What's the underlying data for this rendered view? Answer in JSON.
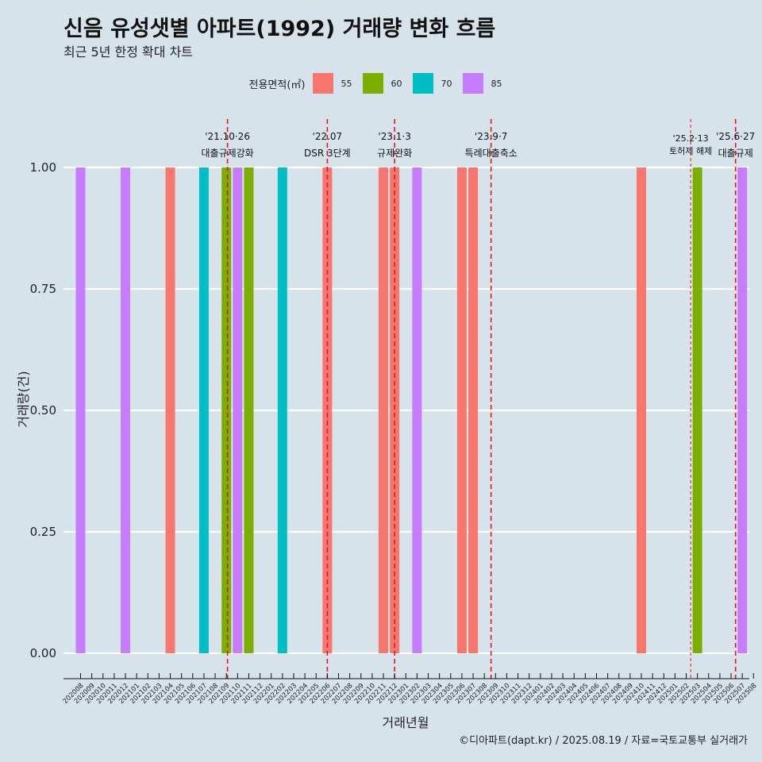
{
  "title": "신음 유성샛별 아파트(1992) 거래량 변화 흐름",
  "subtitle": "최근 5년 한정 확대 차트",
  "caption": "©디아파트(dapt.kr) / 2025.08.19 / 자료=국토교통부 실거래가",
  "legend": {
    "title": "전용면적(㎡)",
    "items": [
      {
        "label": "55",
        "color": "#f8766d"
      },
      {
        "label": "60",
        "color": "#7cae00"
      },
      {
        "label": "70",
        "color": "#00bfc4"
      },
      {
        "label": "85",
        "color": "#c77cff"
      }
    ]
  },
  "chart_data": {
    "type": "bar",
    "xlabel": "거래년월",
    "ylabel": "거래량(건)",
    "ylim": [
      0,
      1
    ],
    "yticks": [
      "0.00",
      "0.25",
      "0.50",
      "0.75",
      "1.00"
    ],
    "categories": [
      "202008",
      "202009",
      "202010",
      "202011",
      "202012",
      "202101",
      "202102",
      "202103",
      "202104",
      "202105",
      "202106",
      "202107",
      "202108",
      "202109",
      "202110",
      "202111",
      "202112",
      "202201",
      "202202",
      "202203",
      "202204",
      "202205",
      "202206",
      "202207",
      "202208",
      "202209",
      "202210",
      "202211",
      "202212",
      "202301",
      "202302",
      "202303",
      "202304",
      "202305",
      "202306",
      "202307",
      "202308",
      "202309",
      "202310",
      "202311",
      "202312",
      "202401",
      "202402",
      "202403",
      "202404",
      "202405",
      "202406",
      "202407",
      "202408",
      "202409",
      "202410",
      "202411",
      "202412",
      "202501",
      "202502",
      "202503",
      "202504",
      "202505",
      "202506",
      "202507",
      "202508"
    ],
    "bars": [
      {
        "month": "202008",
        "area": "85",
        "value": 1
      },
      {
        "month": "202012",
        "area": "85",
        "value": 1
      },
      {
        "month": "202104",
        "area": "55",
        "value": 1
      },
      {
        "month": "202107",
        "area": "70",
        "value": 1
      },
      {
        "month": "202109",
        "area": "60",
        "value": 1
      },
      {
        "month": "202110",
        "area": "85",
        "value": 1
      },
      {
        "month": "202111",
        "area": "60",
        "value": 1
      },
      {
        "month": "202202",
        "area": "70",
        "value": 1
      },
      {
        "month": "202206",
        "area": "55",
        "value": 1
      },
      {
        "month": "202211",
        "area": "55",
        "value": 1
      },
      {
        "month": "202212",
        "area": "55",
        "value": 1
      },
      {
        "month": "202302",
        "area": "85",
        "value": 1
      },
      {
        "month": "202306",
        "area": "55",
        "value": 1
      },
      {
        "month": "202307",
        "area": "55",
        "value": 1
      },
      {
        "month": "202410",
        "area": "55",
        "value": 1
      },
      {
        "month": "202503",
        "area": "60",
        "value": 1
      },
      {
        "month": "202507",
        "area": "85",
        "value": 1
      }
    ],
    "events": [
      {
        "month": "202109",
        "offset": 0.1,
        "date": "'21.10·26",
        "label": "대출규제강화",
        "style": "dashed"
      },
      {
        "month": "202206",
        "offset": 0.0,
        "date": "'22.07",
        "label": "DSR 3단계",
        "style": "dashed"
      },
      {
        "month": "202212",
        "offset": 0.0,
        "date": "'23.1·3",
        "label": "규제완화",
        "style": "dashed"
      },
      {
        "month": "202308",
        "offset": 0.6,
        "date": "'23.9·7",
        "label": "특례대출축소",
        "style": "dashed"
      },
      {
        "month": "202502",
        "offset": 0.4,
        "date": "'25.2·13",
        "label": "토허제 해제",
        "style": "dotted"
      },
      {
        "month": "202506",
        "offset": 0.4,
        "date": "'25.6·27",
        "label": "대출규제",
        "style": "dashed"
      }
    ]
  }
}
